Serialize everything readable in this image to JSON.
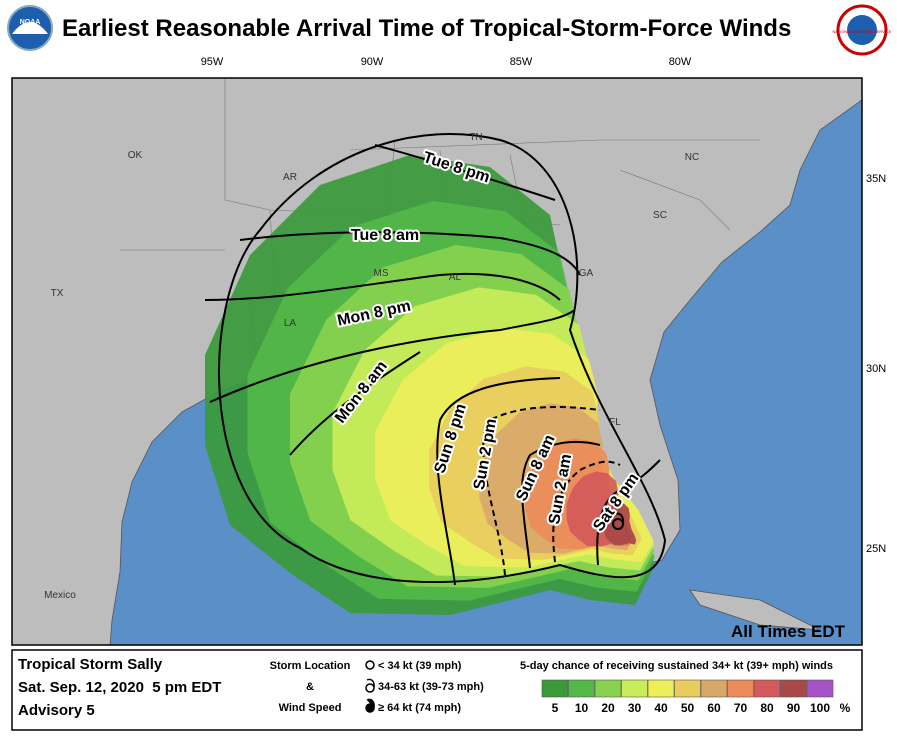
{
  "header": {
    "title": "Earliest Reasonable Arrival Time of Tropical-Storm-Force Winds",
    "left_logo": "NOAA",
    "right_logo": "NATIONAL WEATHER SERVICE"
  },
  "map": {
    "longitude_labels": [
      "95W",
      "90W",
      "85W",
      "80W"
    ],
    "latitude_labels": [
      "35N",
      "30N",
      "25N"
    ],
    "place_labels": [
      "OK",
      "AR",
      "TN",
      "NC",
      "SC",
      "MS",
      "AL",
      "GA",
      "TX",
      "LA",
      "FL",
      "Mexico"
    ],
    "time_labels": [
      "Tue 8 pm",
      "Tue 8 am",
      "Mon 8 pm",
      "Mon 8 am",
      "Sun 8 pm",
      "Sun 2 pm",
      "Sun 8 am",
      "Sun 2 am",
      "Sat 8 pm"
    ],
    "time_note": "All Times EDT"
  },
  "legend": {
    "storm_name": "Tropical Storm Sally",
    "issued": "Sat. Sep. 12, 2020  5 pm EDT",
    "advisory": "Advisory 5",
    "symbol_heading": [
      "Storm Location",
      "&",
      "Wind Speed"
    ],
    "symbols": [
      "< 34 kt (39 mph)",
      "34-63 kt (39-73 mph)",
      "≥ 64 kt (74 mph)"
    ],
    "probability_heading": "5-day chance of receiving sustained 34+ kt (39+ mph) winds",
    "probability_labels": [
      "5",
      "10",
      "20",
      "30",
      "40",
      "50",
      "60",
      "70",
      "80",
      "90",
      "100"
    ],
    "probability_unit": "%"
  }
}
